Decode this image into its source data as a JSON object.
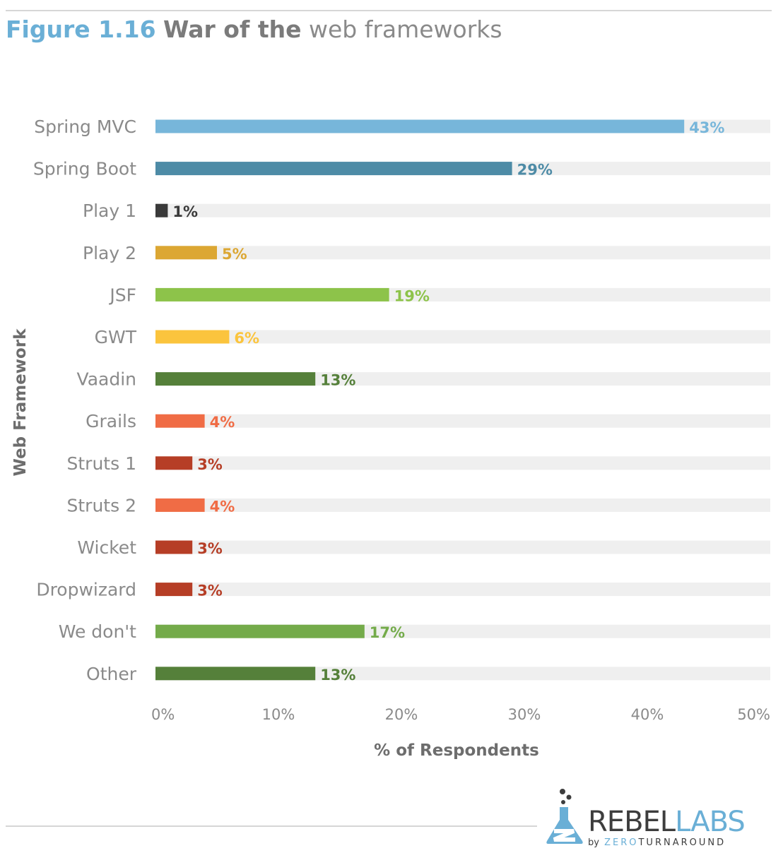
{
  "title": {
    "figure_number": "Figure 1.16",
    "bold_part": "War of the",
    "light_part": "web frameworks"
  },
  "chart_data": {
    "type": "bar",
    "orientation": "horizontal",
    "categories": [
      "Spring MVC",
      "Spring Boot",
      "Play 1",
      "Play 2",
      "JSF",
      "GWT",
      "Vaadin",
      "Grails",
      "Struts 1",
      "Struts 2",
      "Wicket",
      "Dropwizard",
      "We don't",
      "Other"
    ],
    "values": [
      43,
      29,
      1,
      5,
      19,
      6,
      13,
      4,
      3,
      4,
      3,
      3,
      17,
      13
    ],
    "data_labels": [
      "43%",
      "29%",
      "1%",
      "5%",
      "19%",
      "6%",
      "13%",
      "4%",
      "3%",
      "4%",
      "3%",
      "3%",
      "17%",
      "13%"
    ],
    "colors": [
      "#77b6da",
      "#4d8ba6",
      "#3a3a3a",
      "#dca733",
      "#8dc34a",
      "#fbc43d",
      "#55803a",
      "#f06c45",
      "#b63e26",
      "#f06c45",
      "#b63e26",
      "#b63e26",
      "#74ab4a",
      "#55803a"
    ],
    "xlabel": "% of Respondents",
    "ylabel": "Web Framework",
    "xlim": [
      0,
      50
    ],
    "xticks": [
      "0%",
      "10%",
      "20%",
      "30%",
      "40%",
      "50%"
    ],
    "track_color": "#efefef",
    "category_label_color": "#8a8a8a"
  },
  "logo": {
    "brand_left": "REBEL",
    "brand_right": "LABS",
    "by": "by",
    "zero": "ZERO",
    "turnaround": "TURNAROUND",
    "colors": {
      "dark": "#3d3d3d",
      "blue": "#6aafd6"
    }
  }
}
